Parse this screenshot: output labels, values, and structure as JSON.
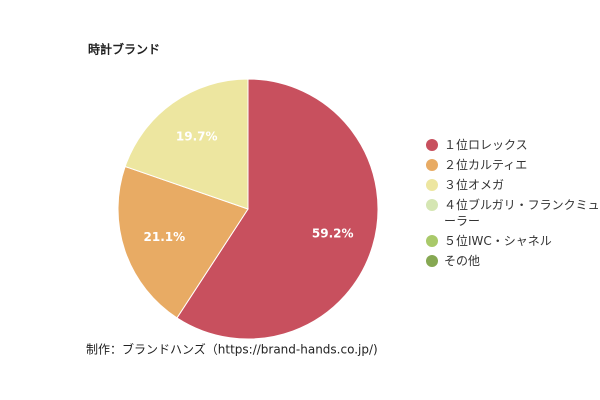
{
  "chart_data": {
    "type": "pie",
    "title": "時計ブランド",
    "categories": [
      "１位ロレックス",
      "２位カルティエ",
      "３位オメガ",
      "４位ブルガリ・フランクミューラー",
      "５位IWC・シャネル",
      "その他"
    ],
    "values": [
      59.2,
      21.1,
      19.7,
      0,
      0,
      0
    ],
    "value_labels": [
      "59.2%",
      "21.1%",
      "19.7%",
      null,
      null,
      null
    ],
    "colors": [
      "#c8505e",
      "#e8ab64",
      "#ede6a0",
      "#d5e6b3",
      "#a9c96a",
      "#86a852"
    ],
    "legend": "right",
    "source": "制作：ブランドハンズ（https://brand-hands.co.jp/)"
  }
}
